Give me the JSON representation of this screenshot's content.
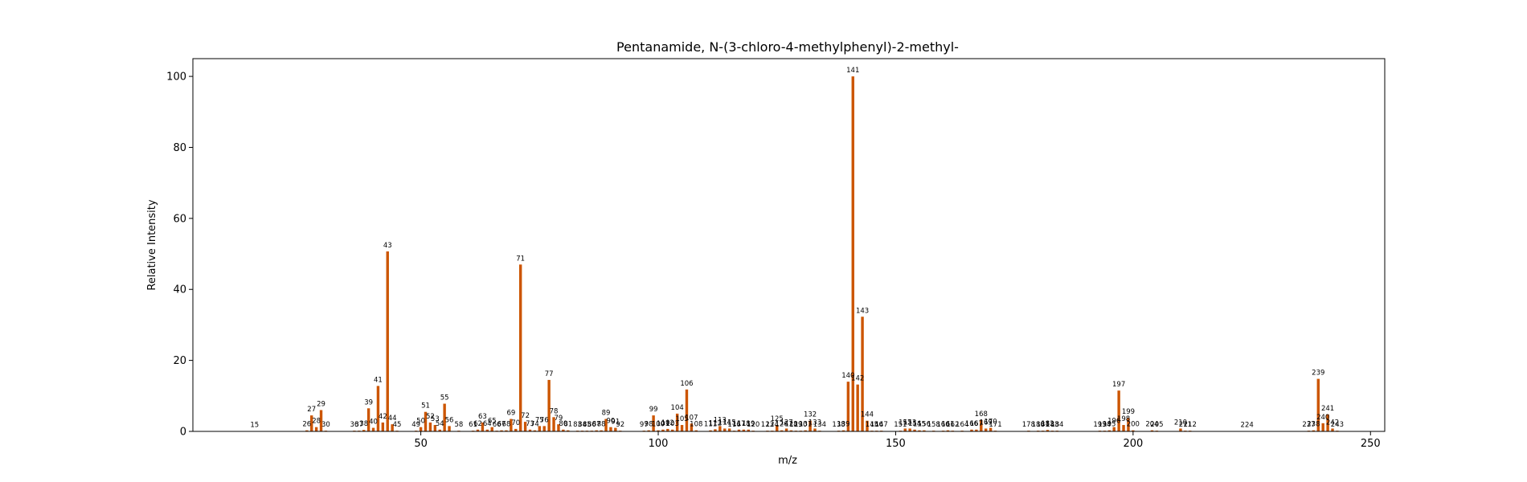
{
  "chart_data": {
    "type": "bar",
    "title": "Pentanamide, N-(3-chloro-4-methylphenyl)-2-methyl-",
    "xlabel": "m/z",
    "ylabel": "Relative Intensity",
    "xlim": [
      2,
      253
    ],
    "ylim": [
      0,
      105
    ],
    "xticks": [
      50,
      100,
      150,
      200,
      250
    ],
    "yticks": [
      0,
      20,
      40,
      60,
      80,
      100
    ],
    "bar_color": "#cc5500",
    "grid": false,
    "legend": "none",
    "peaks": [
      {
        "mz": 15,
        "intensity": 0.1
      },
      {
        "mz": 26,
        "intensity": 0.3
      },
      {
        "mz": 27,
        "intensity": 4.5
      },
      {
        "mz": 28,
        "intensity": 1.2
      },
      {
        "mz": 29,
        "intensity": 6.0
      },
      {
        "mz": 30,
        "intensity": 0.2
      },
      {
        "mz": 36,
        "intensity": 0.2
      },
      {
        "mz": 37,
        "intensity": 0.2
      },
      {
        "mz": 38,
        "intensity": 0.4
      },
      {
        "mz": 39,
        "intensity": 6.5
      },
      {
        "mz": 40,
        "intensity": 1.0
      },
      {
        "mz": 41,
        "intensity": 12.8
      },
      {
        "mz": 42,
        "intensity": 2.5
      },
      {
        "mz": 43,
        "intensity": 50.7
      },
      {
        "mz": 44,
        "intensity": 2.0
      },
      {
        "mz": 45,
        "intensity": 0.2
      },
      {
        "mz": 49,
        "intensity": 0.2
      },
      {
        "mz": 50,
        "intensity": 1.2
      },
      {
        "mz": 51,
        "intensity": 5.5
      },
      {
        "mz": 52,
        "intensity": 2.5
      },
      {
        "mz": 53,
        "intensity": 1.8
      },
      {
        "mz": 54,
        "intensity": 0.5
      },
      {
        "mz": 55,
        "intensity": 7.8
      },
      {
        "mz": 56,
        "intensity": 1.5
      },
      {
        "mz": 58,
        "intensity": 0.2
      },
      {
        "mz": 61,
        "intensity": 0.2
      },
      {
        "mz": 62,
        "intensity": 0.5
      },
      {
        "mz": 63,
        "intensity": 2.5
      },
      {
        "mz": 64,
        "intensity": 0.5
      },
      {
        "mz": 65,
        "intensity": 1.2
      },
      {
        "mz": 66,
        "intensity": 0.2
      },
      {
        "mz": 67,
        "intensity": 0.3
      },
      {
        "mz": 68,
        "intensity": 0.3
      },
      {
        "mz": 69,
        "intensity": 3.5
      },
      {
        "mz": 70,
        "intensity": 0.7
      },
      {
        "mz": 71,
        "intensity": 47.0
      },
      {
        "mz": 72,
        "intensity": 2.7
      },
      {
        "mz": 73,
        "intensity": 0.5
      },
      {
        "mz": 74,
        "intensity": 0.3
      },
      {
        "mz": 75,
        "intensity": 1.5
      },
      {
        "mz": 76,
        "intensity": 1.5
      },
      {
        "mz": 77,
        "intensity": 14.5
      },
      {
        "mz": 78,
        "intensity": 4.0
      },
      {
        "mz": 79,
        "intensity": 2.0
      },
      {
        "mz": 80,
        "intensity": 0.5
      },
      {
        "mz": 81,
        "intensity": 0.3
      },
      {
        "mz": 83,
        "intensity": 0.2
      },
      {
        "mz": 84,
        "intensity": 0.2
      },
      {
        "mz": 85,
        "intensity": 0.2
      },
      {
        "mz": 86,
        "intensity": 0.2
      },
      {
        "mz": 87,
        "intensity": 0.3
      },
      {
        "mz": 88,
        "intensity": 0.3
      },
      {
        "mz": 89,
        "intensity": 3.5
      },
      {
        "mz": 90,
        "intensity": 1.2
      },
      {
        "mz": 91,
        "intensity": 1.0
      },
      {
        "mz": 92,
        "intensity": 0.2
      },
      {
        "mz": 97,
        "intensity": 0.2
      },
      {
        "mz": 98,
        "intensity": 0.3
      },
      {
        "mz": 99,
        "intensity": 4.5
      },
      {
        "mz": 100,
        "intensity": 0.3
      },
      {
        "mz": 101,
        "intensity": 0.5
      },
      {
        "mz": 102,
        "intensity": 0.7
      },
      {
        "mz": 103,
        "intensity": 0.5
      },
      {
        "mz": 104,
        "intensity": 5.0
      },
      {
        "mz": 105,
        "intensity": 1.8
      },
      {
        "mz": 106,
        "intensity": 11.8
      },
      {
        "mz": 107,
        "intensity": 2.2
      },
      {
        "mz": 108,
        "intensity": 0.3
      },
      {
        "mz": 111,
        "intensity": 0.3
      },
      {
        "mz": 112,
        "intensity": 0.6
      },
      {
        "mz": 113,
        "intensity": 1.5
      },
      {
        "mz": 114,
        "intensity": 0.8
      },
      {
        "mz": 115,
        "intensity": 0.8
      },
      {
        "mz": 116,
        "intensity": 0.2
      },
      {
        "mz": 117,
        "intensity": 0.5
      },
      {
        "mz": 118,
        "intensity": 0.5
      },
      {
        "mz": 119,
        "intensity": 0.5
      },
      {
        "mz": 120,
        "intensity": 0.2
      },
      {
        "mz": 123,
        "intensity": 0.2
      },
      {
        "mz": 124,
        "intensity": 0.2
      },
      {
        "mz": 125,
        "intensity": 1.8
      },
      {
        "mz": 126,
        "intensity": 0.3
      },
      {
        "mz": 127,
        "intensity": 0.8
      },
      {
        "mz": 128,
        "intensity": 0.3
      },
      {
        "mz": 129,
        "intensity": 0.2
      },
      {
        "mz": 130,
        "intensity": 0.2
      },
      {
        "mz": 131,
        "intensity": 0.3
      },
      {
        "mz": 132,
        "intensity": 3.0
      },
      {
        "mz": 133,
        "intensity": 0.8
      },
      {
        "mz": 134,
        "intensity": 0.2
      },
      {
        "mz": 138,
        "intensity": 0.2
      },
      {
        "mz": 139,
        "intensity": 0.3
      },
      {
        "mz": 140,
        "intensity": 14.0
      },
      {
        "mz": 141,
        "intensity": 100.0
      },
      {
        "mz": 142,
        "intensity": 13.2
      },
      {
        "mz": 143,
        "intensity": 32.3
      },
      {
        "mz": 144,
        "intensity": 3.0
      },
      {
        "mz": 145,
        "intensity": 0.2
      },
      {
        "mz": 146,
        "intensity": 0.2
      },
      {
        "mz": 147,
        "intensity": 0.2
      },
      {
        "mz": 151,
        "intensity": 0.2
      },
      {
        "mz": 152,
        "intensity": 0.8
      },
      {
        "mz": 153,
        "intensity": 0.8
      },
      {
        "mz": 154,
        "intensity": 0.5
      },
      {
        "mz": 155,
        "intensity": 0.3
      },
      {
        "mz": 156,
        "intensity": 0.3
      },
      {
        "mz": 158,
        "intensity": 0.2
      },
      {
        "mz": 160,
        "intensity": 0.2
      },
      {
        "mz": 161,
        "intensity": 0.3
      },
      {
        "mz": 162,
        "intensity": 0.2
      },
      {
        "mz": 164,
        "intensity": 0.2
      },
      {
        "mz": 166,
        "intensity": 0.5
      },
      {
        "mz": 167,
        "intensity": 0.5
      },
      {
        "mz": 168,
        "intensity": 3.2
      },
      {
        "mz": 169,
        "intensity": 0.8
      },
      {
        "mz": 170,
        "intensity": 1.0
      },
      {
        "mz": 171,
        "intensity": 0.2
      },
      {
        "mz": 178,
        "intensity": 0.2
      },
      {
        "mz": 180,
        "intensity": 0.2
      },
      {
        "mz": 181,
        "intensity": 0.2
      },
      {
        "mz": 182,
        "intensity": 0.4
      },
      {
        "mz": 183,
        "intensity": 0.2
      },
      {
        "mz": 184,
        "intensity": 0.2
      },
      {
        "mz": 193,
        "intensity": 0.2
      },
      {
        "mz": 194,
        "intensity": 0.2
      },
      {
        "mz": 195,
        "intensity": 0.3
      },
      {
        "mz": 196,
        "intensity": 1.2
      },
      {
        "mz": 197,
        "intensity": 11.5
      },
      {
        "mz": 198,
        "intensity": 1.8
      },
      {
        "mz": 199,
        "intensity": 3.8
      },
      {
        "mz": 200,
        "intensity": 0.3
      },
      {
        "mz": 204,
        "intensity": 0.3
      },
      {
        "mz": 205,
        "intensity": 0.2
      },
      {
        "mz": 210,
        "intensity": 0.8
      },
      {
        "mz": 211,
        "intensity": 0.2
      },
      {
        "mz": 212,
        "intensity": 0.2
      },
      {
        "mz": 224,
        "intensity": 0.1
      },
      {
        "mz": 237,
        "intensity": 0.2
      },
      {
        "mz": 238,
        "intensity": 0.3
      },
      {
        "mz": 239,
        "intensity": 14.8
      },
      {
        "mz": 240,
        "intensity": 2.3
      },
      {
        "mz": 241,
        "intensity": 4.8
      },
      {
        "mz": 242,
        "intensity": 0.8
      },
      {
        "mz": 243,
        "intensity": 0.2
      }
    ]
  }
}
